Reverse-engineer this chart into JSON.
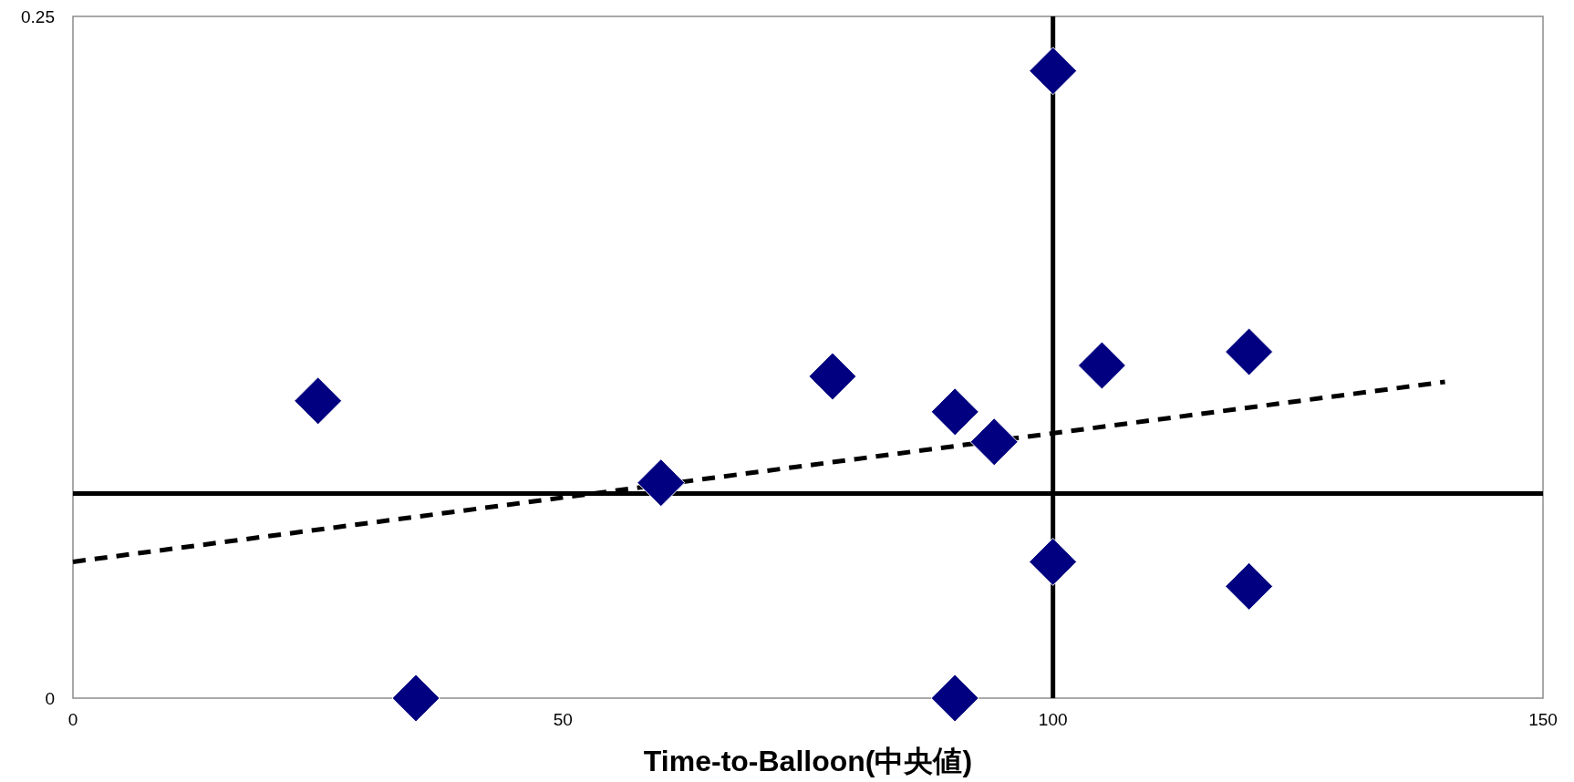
{
  "chart_data": {
    "type": "scatter",
    "xlabel": "Time-to-Balloon(中央値)",
    "xlim": [
      0,
      150
    ],
    "ylim": [
      0,
      0.25
    ],
    "xticks": [
      0,
      50,
      100,
      150
    ],
    "yticks": [
      0,
      0.25
    ],
    "grid": false,
    "series": [
      {
        "color": "#000080",
        "marker": "diamond",
        "x": [
          25,
          35,
          60,
          77.5,
          90,
          94,
          90,
          100,
          100,
          105,
          120,
          120
        ],
        "values": [
          0.109,
          0,
          0.079,
          0.118,
          0.105,
          0.094,
          0,
          0.23,
          0.05,
          0.122,
          0.127,
          0.041
        ]
      },
      {
        "type": "line",
        "color": "#000000",
        "line_style": "dashed",
        "marker": "none",
        "x": [
          0,
          140
        ],
        "values": [
          0.05,
          0.116
        ]
      }
    ],
    "ref_lines": [
      {
        "axis": "y",
        "value": 0.075,
        "color": "#000000",
        "line_style": "solid"
      },
      {
        "axis": "x",
        "value": 100,
        "color": "#000000",
        "line_style": "solid"
      }
    ]
  }
}
